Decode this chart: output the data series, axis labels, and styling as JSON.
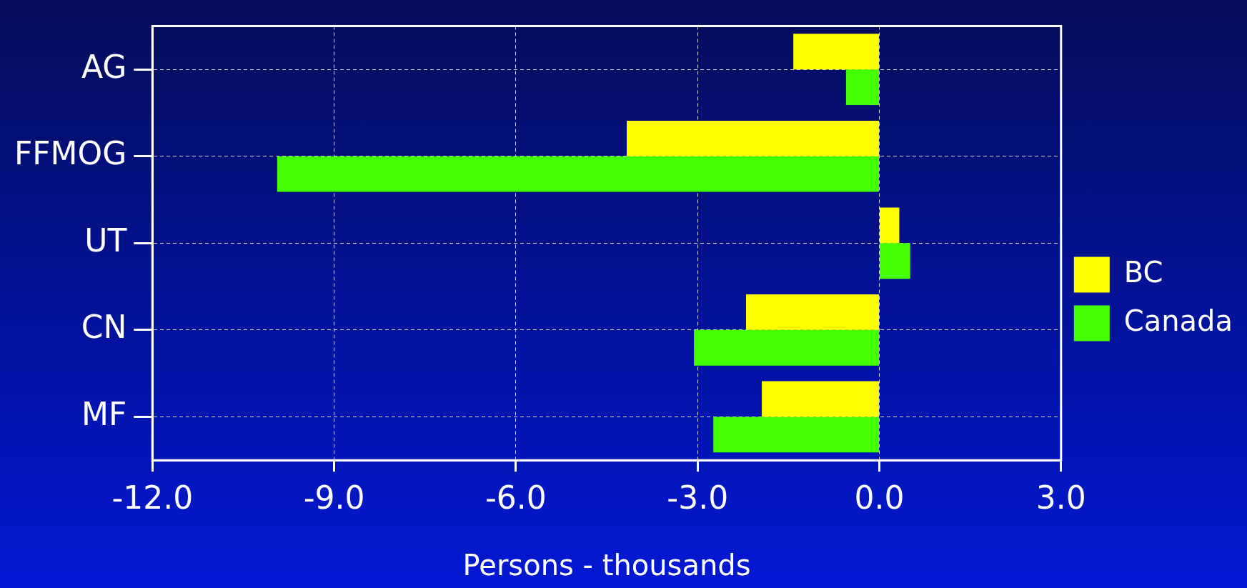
{
  "chart_data": {
    "type": "bar",
    "orientation": "horizontal",
    "xlabel": "Persons - thousands",
    "categories": [
      "AG",
      "FFMOG",
      "UT",
      "CN",
      "MF"
    ],
    "series": [
      {
        "name": "BC",
        "color": "#ffff00",
        "values": [
          -1.42,
          -4.17,
          0.33,
          -2.2,
          -1.94
        ]
      },
      {
        "name": "Canada",
        "color": "#44ff00",
        "values": [
          -0.55,
          -9.94,
          0.51,
          -3.06,
          -2.74
        ]
      }
    ],
    "xlim": [
      -12,
      3
    ],
    "xticks": [
      {
        "value": -12,
        "label": "-12.0"
      },
      {
        "value": -9,
        "label": "-9.0"
      },
      {
        "value": -6,
        "label": "-6.0"
      },
      {
        "value": -3,
        "label": "-3.0"
      },
      {
        "value": 0,
        "label": "0.0"
      },
      {
        "value": 3,
        "label": "3.0"
      }
    ],
    "grid": true,
    "legend": "right"
  }
}
